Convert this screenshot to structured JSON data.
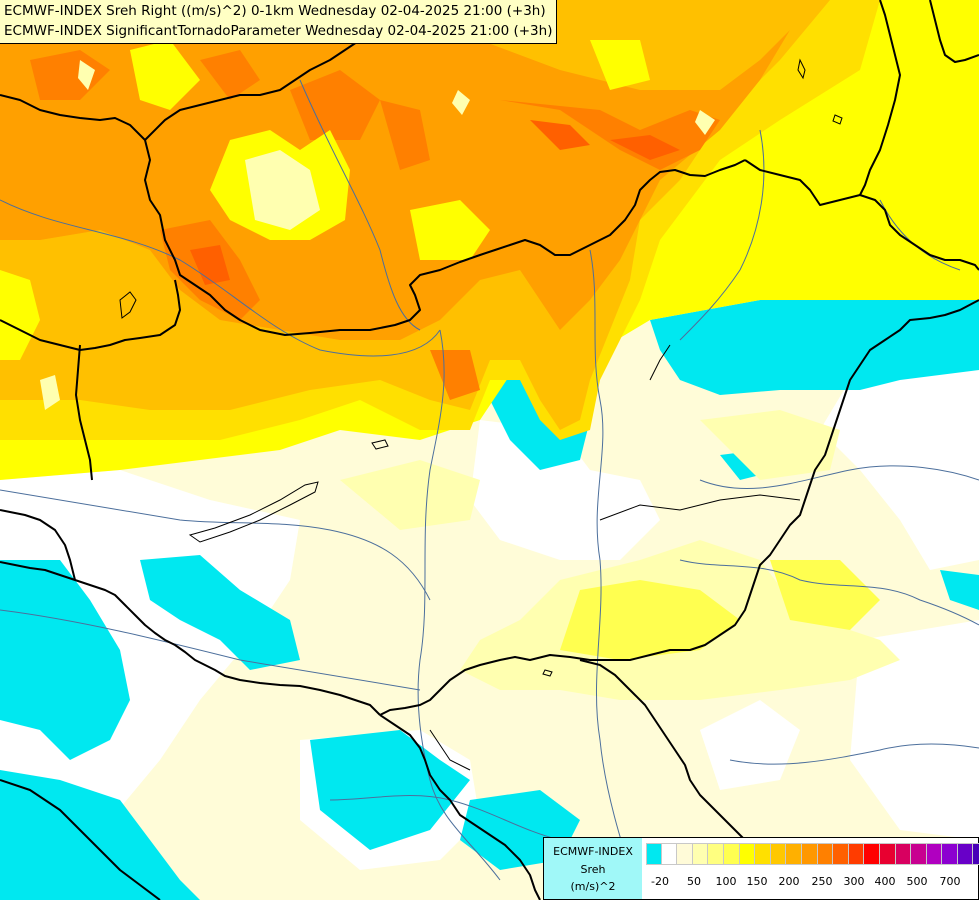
{
  "header": {
    "line1": "ECMWF-INDEX Sreh Right ((m/s)^2) 0-1km Wednesday 02-04-2025 21:00 (+3h)",
    "line2": "ECMWF-INDEX SignificantTornadoParameter Wednesday 02-04-2025 21:00 (+3h)"
  },
  "legend": {
    "title1": "ECMWF-INDEX",
    "title2": "Sreh",
    "title3": "(m/s)^2",
    "colors": [
      "#00e8f0",
      "#ffffff",
      "#fffbd8",
      "#ffffb0",
      "#ffff80",
      "#ffff50",
      "#ffff00",
      "#ffe000",
      "#ffc800",
      "#ffb000",
      "#ff9800",
      "#ff8000",
      "#ff6000",
      "#ff3c00",
      "#ff0000",
      "#e80030",
      "#d80060",
      "#c80090",
      "#b000c0",
      "#8c00d0",
      "#6800c8",
      "#4800b8",
      "#2800a0",
      "#000080"
    ],
    "ticks": [
      "-20",
      "50",
      "100",
      "150",
      "200",
      "250",
      "300",
      "400",
      "500",
      "700"
    ]
  },
  "map": {
    "colors": {
      "cyan": "#00e8f0",
      "white": "#ffffff",
      "pale": "#fffcd8",
      "lightyellow": "#ffffb0",
      "yellow": "#ffff00",
      "gold": "#ffe000",
      "amber": "#ffc000",
      "orange": "#ffa000",
      "deeporange": "#ff8000",
      "red": "#ff6000",
      "border": "#000000",
      "river": "#4c6f9c"
    }
  }
}
